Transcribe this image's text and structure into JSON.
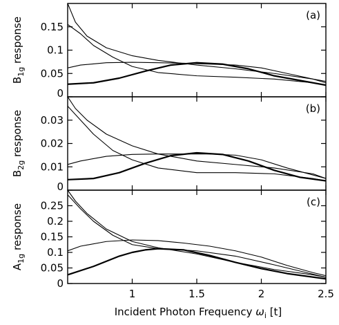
{
  "chart_data": {
    "type": "line",
    "xlabel": "Incident Photon Frequency",
    "xlabel_symbol": "ω",
    "xlabel_subscript": "i",
    "xlabel_unit": "[t]",
    "xlim": [
      0.5,
      2.5
    ],
    "xticks": [
      1,
      1.5,
      2,
      2.5
    ],
    "xtick_labels": [
      "1",
      "1.5",
      "2",
      "2.5"
    ],
    "grid": false,
    "panels": [
      {
        "label": "(a)",
        "ylabel_main": "B",
        "ylabel_sub": "1g",
        "ylabel_rest": " response",
        "ylim": [
          0,
          0.2
        ],
        "yticks": [
          0,
          0.05,
          0.1,
          0.15
        ],
        "ytick_labels": [
          "0",
          "0.05",
          "0.1",
          "0.15"
        ],
        "series": [
          {
            "weight": "thick",
            "x": [
              0.5,
              0.7,
              0.9,
              1.1,
              1.3,
              1.5,
              1.7,
              1.9,
              2.1,
              2.3,
              2.5
            ],
            "y": [
              0.027,
              0.03,
              0.04,
              0.055,
              0.068,
              0.073,
              0.07,
              0.06,
              0.045,
              0.035,
              0.025
            ]
          },
          {
            "weight": "thin",
            "x": [
              0.5,
              0.6,
              0.8,
              1.0,
              1.2,
              1.4,
              1.6,
              1.8,
              2.0,
              2.2,
              2.4,
              2.5
            ],
            "y": [
              0.062,
              0.068,
              0.073,
              0.074,
              0.073,
              0.072,
              0.07,
              0.068,
              0.062,
              0.05,
              0.038,
              0.033
            ]
          },
          {
            "weight": "thin",
            "x": [
              0.5,
              0.56,
              0.65,
              0.8,
              1.0,
              1.2,
              1.5,
              1.8,
              2.1,
              2.4,
              2.5
            ],
            "y": [
              0.2,
              0.16,
              0.13,
              0.105,
              0.088,
              0.078,
              0.068,
              0.06,
              0.05,
              0.038,
              0.03
            ]
          },
          {
            "weight": "thin",
            "x": [
              0.5,
              0.6,
              0.7,
              0.85,
              1.0,
              1.2,
              1.5,
              1.8,
              2.1,
              2.4,
              2.5
            ],
            "y": [
              0.155,
              0.135,
              0.11,
              0.085,
              0.065,
              0.052,
              0.045,
              0.042,
              0.038,
              0.03,
              0.025
            ]
          }
        ]
      },
      {
        "label": "(b)",
        "ylabel_main": "B",
        "ylabel_sub": "2g",
        "ylabel_rest": " response",
        "ylim": [
          0,
          0.04
        ],
        "yticks": [
          0,
          0.01,
          0.02,
          0.03
        ],
        "ytick_labels": [
          "0",
          "0.01",
          "0.02",
          "0.03"
        ],
        "series": [
          {
            "weight": "thick",
            "x": [
              0.5,
              0.7,
              0.9,
              1.1,
              1.3,
              1.5,
              1.7,
              1.9,
              2.1,
              2.3,
              2.5
            ],
            "y": [
              0.0045,
              0.005,
              0.0075,
              0.0115,
              0.0148,
              0.016,
              0.0153,
              0.0125,
              0.0085,
              0.0055,
              0.004
            ]
          },
          {
            "weight": "thin",
            "x": [
              0.5,
              0.6,
              0.8,
              1.0,
              1.2,
              1.4,
              1.6,
              1.8,
              2.0,
              2.2,
              2.4,
              2.5
            ],
            "y": [
              0.011,
              0.0125,
              0.0145,
              0.0153,
              0.0155,
              0.0155,
              0.0155,
              0.015,
              0.013,
              0.0095,
              0.0065,
              0.005
            ]
          },
          {
            "weight": "thin",
            "x": [
              0.5,
              0.56,
              0.65,
              0.8,
              1.0,
              1.2,
              1.5,
              1.8,
              2.1,
              2.4,
              2.5
            ],
            "y": [
              0.04,
              0.035,
              0.03,
              0.024,
              0.019,
              0.0155,
              0.0125,
              0.011,
              0.0095,
              0.007,
              0.005
            ]
          },
          {
            "weight": "thin",
            "x": [
              0.5,
              0.6,
              0.7,
              0.85,
              1.0,
              1.2,
              1.5,
              1.8,
              2.1,
              2.4,
              2.5
            ],
            "y": [
              0.036,
              0.03,
              0.024,
              0.017,
              0.013,
              0.0095,
              0.0075,
              0.0075,
              0.007,
              0.005,
              0.004
            ]
          }
        ]
      },
      {
        "label": "(c)",
        "ylabel_main": "A",
        "ylabel_sub": "1g",
        "ylabel_rest": " response",
        "ylim": [
          0,
          0.3
        ],
        "yticks": [
          0,
          0.05,
          0.1,
          0.15,
          0.2,
          0.25
        ],
        "ytick_labels": [
          "0",
          "0.05",
          "0.1",
          "0.15",
          "0.2",
          "0.25"
        ],
        "series": [
          {
            "weight": "thick",
            "x": [
              0.5,
              0.7,
              0.9,
              1.0,
              1.1,
              1.2,
              1.4,
              1.6,
              1.8,
              2.0,
              2.2,
              2.5
            ],
            "y": [
              0.028,
              0.055,
              0.088,
              0.1,
              0.108,
              0.112,
              0.108,
              0.09,
              0.068,
              0.048,
              0.032,
              0.015
            ]
          },
          {
            "weight": "thin",
            "x": [
              0.5,
              0.6,
              0.8,
              1.0,
              1.2,
              1.4,
              1.6,
              1.8,
              2.0,
              2.2,
              2.4,
              2.5
            ],
            "y": [
              0.105,
              0.12,
              0.135,
              0.14,
              0.138,
              0.13,
              0.12,
              0.105,
              0.085,
              0.058,
              0.035,
              0.025
            ]
          },
          {
            "weight": "thin",
            "x": [
              0.5,
              0.56,
              0.65,
              0.8,
              1.0,
              1.2,
              1.5,
              1.8,
              2.1,
              2.4,
              2.5
            ],
            "y": [
              0.3,
              0.265,
              0.225,
              0.175,
              0.135,
              0.115,
              0.095,
              0.068,
              0.045,
              0.028,
              0.02
            ]
          },
          {
            "weight": "thin",
            "x": [
              0.5,
              0.6,
              0.7,
              0.85,
              1.0,
              1.2,
              1.5,
              1.8,
              2.1,
              2.4,
              2.5
            ],
            "y": [
              0.285,
              0.24,
              0.2,
              0.155,
              0.125,
              0.112,
              0.105,
              0.088,
              0.06,
              0.03,
              0.02
            ]
          }
        ]
      }
    ]
  }
}
